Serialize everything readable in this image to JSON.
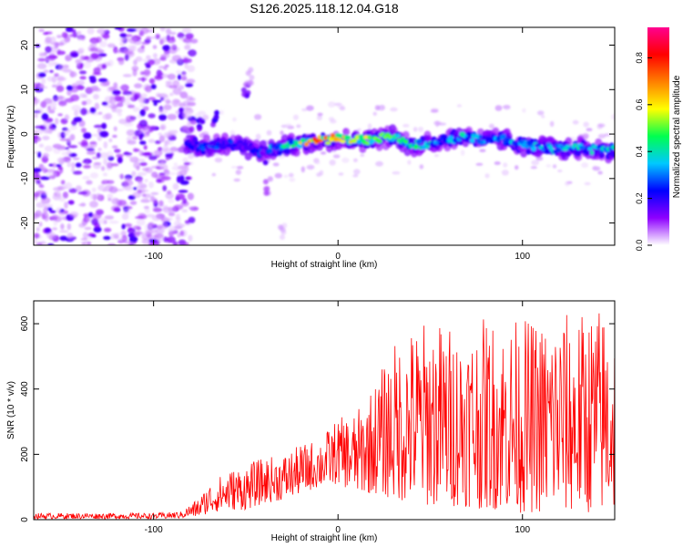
{
  "title": "S126.2025.118.12.04.G18",
  "chart_data": [
    {
      "type": "heatmap",
      "xlabel": "Height of straight line (km)",
      "ylabel": "Frequency (Hz)",
      "xlim": [
        -165,
        150
      ],
      "ylim": [
        -25,
        24
      ],
      "xticks": [
        "-100",
        "0",
        "100"
      ],
      "xtick_values": [
        -100,
        0,
        100
      ],
      "yticks": [
        "-20",
        "-10",
        "0",
        "10",
        "20"
      ],
      "ytick_values": [
        -20,
        -10,
        0,
        10,
        20
      ],
      "colorbar": {
        "label": "Normalized spectral amplitude",
        "range": [
          0,
          0.93
        ],
        "ticks": [
          "0.0",
          "0.2",
          "0.4",
          "0.6",
          "0.8"
        ],
        "tick_values": [
          0.0,
          0.2,
          0.4,
          0.6,
          0.8
        ],
        "colors": [
          "#ffffff",
          "#8e00ff",
          "#0000ff",
          "#00c8ff",
          "#00ff50",
          "#ffff00",
          "#ff8000",
          "#ff0000",
          "#ff0090"
        ]
      },
      "noise_region_x": [
        -165,
        -82
      ],
      "ridge": {
        "x": [
          -82,
          -70,
          -60,
          -50,
          -40,
          -30,
          -20,
          -10,
          0,
          10,
          20,
          30,
          40,
          50,
          60,
          70,
          80,
          90,
          100,
          110,
          120,
          130,
          140,
          150
        ],
        "frequency": [
          -2,
          -3,
          -2,
          -3,
          -4,
          -3,
          -2,
          -1.5,
          -1,
          -1.5,
          -1.2,
          -0.5,
          -2.5,
          -2,
          -1,
          -0.5,
          -1.5,
          -1.2,
          -2.5,
          -3,
          -3.5,
          -3.2,
          -3.5,
          -3.8
        ],
        "peak_amplitude": [
          0.25,
          0.3,
          0.3,
          0.22,
          0.35,
          0.45,
          0.65,
          0.85,
          0.75,
          0.7,
          0.6,
          0.5,
          0.5,
          0.45,
          0.4,
          0.45,
          0.4,
          0.35,
          0.45,
          0.4,
          0.4,
          0.45,
          0.4,
          0.4
        ]
      },
      "blobs": [
        {
          "x": -50,
          "frequency": 10,
          "amplitude": 0.15
        },
        {
          "x": -48,
          "frequency": 13,
          "amplitude": 0.08
        },
        {
          "x": -40,
          "frequency": -5,
          "amplitude": 0.15
        },
        {
          "x": -38,
          "frequency": -12,
          "amplitude": 0.1
        },
        {
          "x": -75,
          "frequency": 2,
          "amplitude": 0.2
        },
        {
          "x": -67,
          "frequency": 3.5,
          "amplitude": 0.2
        },
        {
          "x": -30,
          "frequency": -22,
          "amplitude": 0.05
        }
      ]
    },
    {
      "type": "line",
      "xlabel": "Height of straight line (km)",
      "ylabel": "SNR (10 * v/v)",
      "xlim": [
        -165,
        150
      ],
      "ylim": [
        0,
        670
      ],
      "xticks": [
        "-100",
        "0",
        "100"
      ],
      "xtick_values": [
        -100,
        0,
        100
      ],
      "yticks": [
        "0",
        "200",
        "400",
        "600"
      ],
      "ytick_values": [
        0,
        200,
        400,
        600
      ],
      "color": "#ff0000",
      "envelope": {
        "x": [
          -165,
          -130,
          -100,
          -85,
          -75,
          -70,
          -60,
          -50,
          -40,
          -30,
          -20,
          -10,
          0,
          10,
          20,
          30,
          40,
          50,
          60,
          70,
          80,
          90,
          100,
          110,
          120,
          130,
          140,
          150
        ],
        "max": [
          20,
          20,
          20,
          25,
          70,
          110,
          150,
          170,
          190,
          200,
          230,
          250,
          310,
          330,
          420,
          540,
          590,
          620,
          600,
          590,
          620,
          610,
          620,
          610,
          640,
          630,
          660,
          640
        ],
        "min": [
          2,
          2,
          2,
          3,
          10,
          20,
          30,
          30,
          50,
          60,
          80,
          100,
          110,
          80,
          80,
          60,
          50,
          40,
          40,
          40,
          30,
          30,
          20,
          20,
          20,
          20,
          20,
          20
        ]
      }
    }
  ]
}
